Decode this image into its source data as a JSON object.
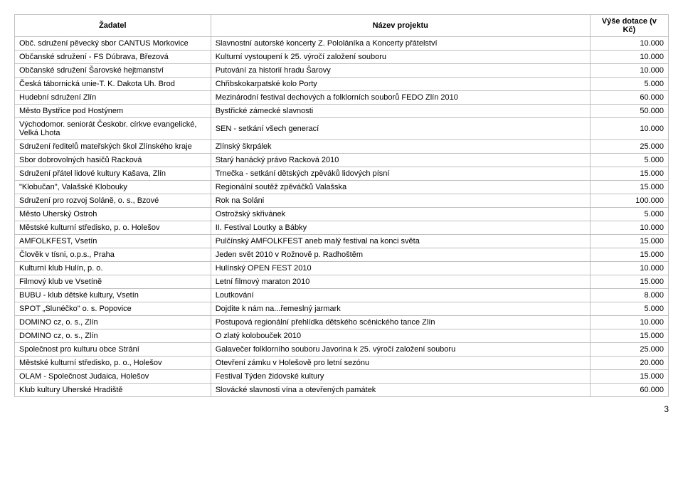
{
  "columns": [
    "Žadatel",
    "Název projektu",
    "Výše dotace (v Kč)"
  ],
  "rows": [
    [
      "Obč. sdružení pěvecký sbor CANTUS Morkovice",
      "Slavnostní autorské koncerty Z. Pololáníka a Koncerty přátelství",
      "10.000"
    ],
    [
      "Občanské sdružení - FS Dúbrava, Březová",
      "Kulturní vystoupení k 25. výročí založení souboru",
      "10.000"
    ],
    [
      "Občanské sdružení Šarovské hejtmanství",
      "Putování za historií hradu Šarovy",
      "10.000"
    ],
    [
      "Česká tábornická unie-T. K. Dakota Uh. Brod",
      "Chřibskokarpatské kolo Porty",
      "5.000"
    ],
    [
      "Hudební sdružení Zlín",
      "Mezinárodní festival dechových a folklorních souborů FEDO Zlín 2010",
      "60.000"
    ],
    [
      "Město Bystřice pod Hostýnem",
      "Bystřické zámecké slavnosti",
      "50.000"
    ],
    [
      "Východomor. seniorát Českobr. církve evangelické, Velká Lhota",
      "SEN - setkání všech generací",
      "10.000"
    ],
    [
      "Sdružení ředitelů mateřských škol Zlínského kraje",
      "Zlínský škrpálek",
      "25.000"
    ],
    [
      "Sbor dobrovolných hasičů Racková",
      "Starý hanácký právo Racková 2010",
      "5.000"
    ],
    [
      "Sdružení přátel lidové kultury Kašava, Zlín",
      "Trnečka - setkání dětských zpěváků lidových písní",
      "15.000"
    ],
    [
      "\"Klobučan\", Valašské Klobouky",
      "Regionální soutěž zpěváčků Valašska",
      "15.000"
    ],
    [
      "Sdružení pro rozvoj Soláně, o. s., Bzové",
      "Rok na Soláni",
      "100.000"
    ],
    [
      "Město Uherský Ostroh",
      "Ostrožský skřivánek",
      "5.000"
    ],
    [
      "Městské kulturní středisko, p. o. Holešov",
      "II. Festival Loutky a Bábky",
      "10.000"
    ],
    [
      "AMFOLKFEST, Vsetín",
      "Pulčínský AMFOLKFEST aneb malý festival na konci světa",
      "15.000"
    ],
    [
      "Člověk v tísni, o.p.s., Praha",
      "Jeden svět 2010 v Rožnově p. Radhoštěm",
      "15.000"
    ],
    [
      "Kulturní klub Hulín, p. o.",
      "Hulínský OPEN FEST 2010",
      "10.000"
    ],
    [
      "Filmový klub ve Vsetíně",
      "Letní filmový maraton 2010",
      "15.000"
    ],
    [
      "BUBU - klub dětské kultury, Vsetín",
      "Loutkování",
      "8.000"
    ],
    [
      "SPOT „Slunéčko\" o. s. Popovice",
      "Dojdite k nám na...řemeslný jarmark",
      "5.000"
    ],
    [
      "DOMINO cz, o. s., Zlín",
      "Postupová regionální přehlídka dětského scénického tance Zlín",
      "10.000"
    ],
    [
      "DOMINO cz, o. s., Zlín",
      "O zlatý kolobouček 2010",
      "15.000"
    ],
    [
      "Společnost pro kulturu obce Strání",
      "Galavečer folklorního souboru Javorina k 25. výročí založení souboru",
      "25.000"
    ],
    [
      "Městské kulturní středisko, p. o., Holešov",
      "Otevření zámku v Holešově pro letní sezónu",
      "20.000"
    ],
    [
      "OLAM - Společnost Judaica, Holešov",
      "Festival Týden židovské kultury",
      "15.000"
    ],
    [
      "Klub kultury Uherské Hradiště",
      "Slovácké slavnosti vína a otevřených památek",
      "60.000"
    ]
  ],
  "pageNumber": "3"
}
